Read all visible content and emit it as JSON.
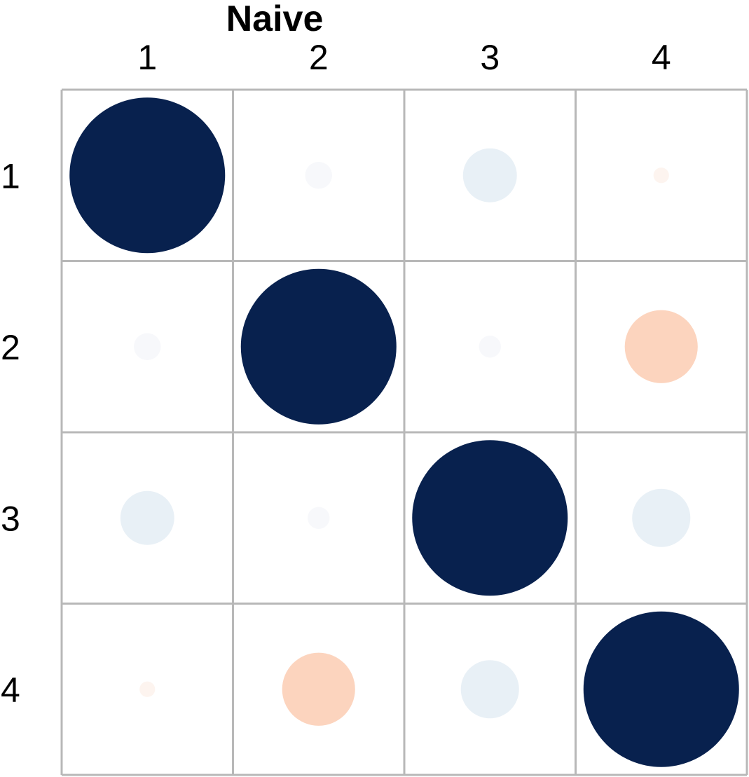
{
  "chart_data": {
    "type": "heatmap",
    "title": "Naive",
    "x_labels": [
      "1",
      "2",
      "3",
      "4"
    ],
    "y_labels": [
      "1",
      "2",
      "3",
      "4"
    ],
    "values": [
      [
        1.0,
        0.03,
        0.12,
        -0.01
      ],
      [
        0.03,
        1.0,
        0.02,
        -0.22
      ],
      [
        0.12,
        0.02,
        1.0,
        0.14
      ],
      [
        -0.01,
        -0.22,
        0.14,
        1.0
      ]
    ],
    "value_range": [
      -1,
      1
    ],
    "colors": {
      "positive_strong": "#08214e",
      "positive_weak": "#e8f0f6",
      "near_zero": "#f7f8fb",
      "negative_weak": "#fcd4be",
      "grid": "#b8b8b8",
      "text": "#000000"
    }
  }
}
